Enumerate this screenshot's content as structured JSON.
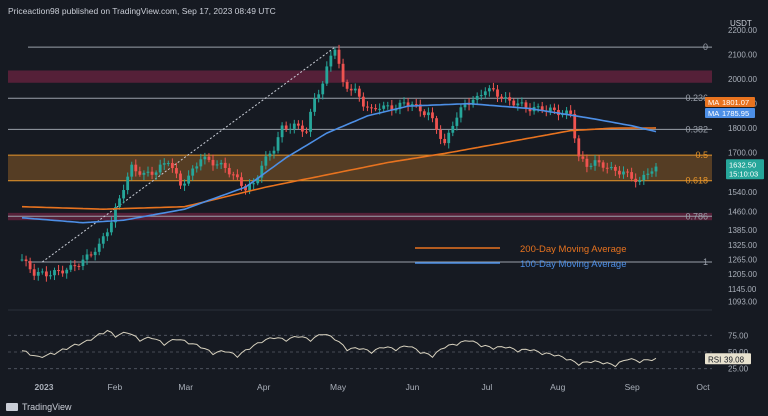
{
  "header": {
    "text": "Priceaction98 published on TradingView.com, Sep 17, 2023 08:49 UTC"
  },
  "footer": {
    "brand": "TradingView"
  },
  "chart_data": {
    "type": "candlestick",
    "currency": "USDT",
    "ylim": [
      1100,
      2200
    ],
    "y_ticks": [
      2200,
      2100,
      2000,
      1900,
      1800,
      1700,
      1540,
      1460,
      1385,
      1325,
      1265,
      1205,
      1145,
      1093
    ],
    "x_ticks": [
      "2023",
      "Feb",
      "Mar",
      "Apr",
      "May",
      "Jun",
      "Jul",
      "Aug",
      "Sep",
      "Oct"
    ],
    "fib_levels": [
      {
        "label": "0",
        "price": 2130
      },
      {
        "label": "0.236",
        "price": 1922
      },
      {
        "label": "0.382",
        "price": 1795
      },
      {
        "label": "0.5",
        "price": 1690
      },
      {
        "label": "0.618",
        "price": 1586
      },
      {
        "label": "0.786",
        "price": 1441
      },
      {
        "label": "1",
        "price": 1255
      }
    ],
    "zones": [
      {
        "from": 1985,
        "to": 2035,
        "color": "#6b2340"
      },
      {
        "from": 1586,
        "to": 1690,
        "color": "#6b4a26"
      },
      {
        "from": 1425,
        "to": 1455,
        "color": "#6b2340"
      }
    ],
    "last_price": "1632.50",
    "countdown": "15:10:03",
    "ma_labels": [
      {
        "tag": "MA",
        "value": "1801.07",
        "color": "#e8731f"
      },
      {
        "tag": "MA",
        "value": "1785.95",
        "color": "#4d8fe6"
      }
    ],
    "legend": [
      {
        "name": "200-Day Moving Average",
        "color": "#e8731f"
      },
      {
        "name": "100-Day Moving Average",
        "color": "#4d8fe6"
      }
    ],
    "price_path": [
      [
        0,
        1265
      ],
      [
        3,
        1210
      ],
      [
        6,
        1205
      ],
      [
        9,
        1215
      ],
      [
        12,
        1230
      ],
      [
        15,
        1260
      ],
      [
        19,
        1320
      ],
      [
        22,
        1420
      ],
      [
        25,
        1560
      ],
      [
        27,
        1640
      ],
      [
        30,
        1610
      ],
      [
        33,
        1625
      ],
      [
        36,
        1670
      ],
      [
        39,
        1570
      ],
      [
        41,
        1600
      ],
      [
        44,
        1680
      ],
      [
        47,
        1660
      ],
      [
        50,
        1640
      ],
      [
        53,
        1590
      ],
      [
        55,
        1555
      ],
      [
        57,
        1570
      ],
      [
        59,
        1650
      ],
      [
        62,
        1720
      ],
      [
        64,
        1800
      ],
      [
        67,
        1810
      ],
      [
        70,
        1790
      ],
      [
        72,
        1920
      ],
      [
        74,
        1980
      ],
      [
        76,
        2100
      ],
      [
        77,
        2130
      ],
      [
        79,
        1980
      ],
      [
        82,
        1950
      ],
      [
        84,
        1900
      ],
      [
        86,
        1870
      ],
      [
        88,
        1890
      ],
      [
        91,
        1880
      ],
      [
        94,
        1900
      ],
      [
        96,
        1900
      ],
      [
        98,
        1870
      ],
      [
        100,
        1860
      ],
      [
        102,
        1800
      ],
      [
        104,
        1730
      ],
      [
        106,
        1820
      ],
      [
        109,
        1900
      ],
      [
        112,
        1920
      ],
      [
        114,
        1960
      ],
      [
        116,
        1950
      ],
      [
        119,
        1915
      ],
      [
        122,
        1900
      ],
      [
        125,
        1880
      ],
      [
        128,
        1880
      ],
      [
        131,
        1870
      ],
      [
        133,
        1860
      ],
      [
        135,
        1860
      ],
      [
        137,
        1680
      ],
      [
        139,
        1650
      ],
      [
        141,
        1660
      ],
      [
        143,
        1650
      ],
      [
        145,
        1630
      ],
      [
        148,
        1620
      ],
      [
        150,
        1600
      ],
      [
        152,
        1580
      ],
      [
        154,
        1625
      ],
      [
        156,
        1632
      ]
    ],
    "ma200_path": [
      [
        0,
        1480
      ],
      [
        20,
        1470
      ],
      [
        40,
        1480
      ],
      [
        60,
        1560
      ],
      [
        75,
        1610
      ],
      [
        90,
        1660
      ],
      [
        105,
        1700
      ],
      [
        115,
        1730
      ],
      [
        125,
        1760
      ],
      [
        135,
        1790
      ],
      [
        145,
        1800
      ],
      [
        156,
        1801
      ]
    ],
    "ma100_path": [
      [
        0,
        1435
      ],
      [
        15,
        1415
      ],
      [
        25,
        1425
      ],
      [
        40,
        1470
      ],
      [
        55,
        1560
      ],
      [
        65,
        1680
      ],
      [
        75,
        1780
      ],
      [
        85,
        1850
      ],
      [
        95,
        1890
      ],
      [
        110,
        1900
      ],
      [
        125,
        1880
      ],
      [
        140,
        1840
      ],
      [
        150,
        1810
      ],
      [
        156,
        1786
      ]
    ],
    "rsi": {
      "label": "RSI",
      "value": "39.08",
      "levels": [
        75,
        50,
        25
      ],
      "ylim": [
        20,
        95
      ],
      "path": [
        [
          0,
          52
        ],
        [
          4,
          42
        ],
        [
          8,
          48
        ],
        [
          12,
          58
        ],
        [
          16,
          66
        ],
        [
          19,
          76
        ],
        [
          21,
          82
        ],
        [
          23,
          74
        ],
        [
          26,
          80
        ],
        [
          29,
          68
        ],
        [
          32,
          72
        ],
        [
          35,
          62
        ],
        [
          38,
          70
        ],
        [
          41,
          64
        ],
        [
          44,
          58
        ],
        [
          47,
          48
        ],
        [
          50,
          52
        ],
        [
          53,
          44
        ],
        [
          56,
          56
        ],
        [
          59,
          66
        ],
        [
          62,
          72
        ],
        [
          65,
          68
        ],
        [
          68,
          74
        ],
        [
          71,
          68
        ],
        [
          74,
          78
        ],
        [
          77,
          70
        ],
        [
          80,
          54
        ],
        [
          83,
          56
        ],
        [
          86,
          50
        ],
        [
          89,
          58
        ],
        [
          92,
          54
        ],
        [
          95,
          60
        ],
        [
          98,
          50
        ],
        [
          101,
          44
        ],
        [
          104,
          58
        ],
        [
          107,
          62
        ],
        [
          110,
          68
        ],
        [
          113,
          60
        ],
        [
          116,
          56
        ],
        [
          119,
          58
        ],
        [
          122,
          52
        ],
        [
          125,
          54
        ],
        [
          128,
          48
        ],
        [
          131,
          46
        ],
        [
          134,
          40
        ],
        [
          137,
          32
        ],
        [
          140,
          36
        ],
        [
          143,
          34
        ],
        [
          146,
          30
        ],
        [
          149,
          40
        ],
        [
          152,
          36
        ],
        [
          155,
          39
        ]
      ]
    }
  }
}
